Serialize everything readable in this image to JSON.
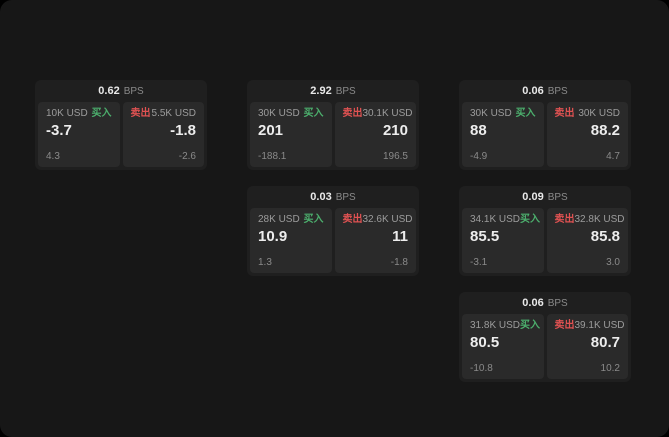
{
  "labels": {
    "bps": "BPS",
    "buy": "买入",
    "sell": "卖出"
  },
  "colors": {
    "buy": "#4caf6d",
    "sell": "#e05252",
    "background": "#171717",
    "card": "#1f1f1f",
    "panel": "#2a2a2a"
  },
  "cards": [
    {
      "bps": "0.62",
      "buy": {
        "amount": "10K USD",
        "price": "-3.7",
        "delta": "4.3"
      },
      "sell": {
        "amount": "5.5K USD",
        "price": "-1.8",
        "delta": "-2.6"
      }
    },
    {
      "bps": "2.92",
      "buy": {
        "amount": "30K USD",
        "price": "201",
        "delta": "-188.1"
      },
      "sell": {
        "amount": "30.1K USD",
        "price": "210",
        "delta": "196.5"
      }
    },
    {
      "bps": "0.06",
      "buy": {
        "amount": "30K USD",
        "price": "88",
        "delta": "-4.9"
      },
      "sell": {
        "amount": "30K USD",
        "price": "88.2",
        "delta": "4.7"
      }
    },
    {
      "bps": "0.03",
      "buy": {
        "amount": "28K USD",
        "price": "10.9",
        "delta": "1.3"
      },
      "sell": {
        "amount": "32.6K USD",
        "price": "11",
        "delta": "-1.8"
      }
    },
    {
      "bps": "0.09",
      "buy": {
        "amount": "34.1K USD",
        "price": "85.5",
        "delta": "-3.1"
      },
      "sell": {
        "amount": "32.8K USD",
        "price": "85.8",
        "delta": "3.0"
      }
    },
    {
      "bps": "0.06",
      "buy": {
        "amount": "31.8K USD",
        "price": "80.5",
        "delta": "-10.8"
      },
      "sell": {
        "amount": "39.1K USD",
        "price": "80.7",
        "delta": "10.2"
      }
    }
  ]
}
